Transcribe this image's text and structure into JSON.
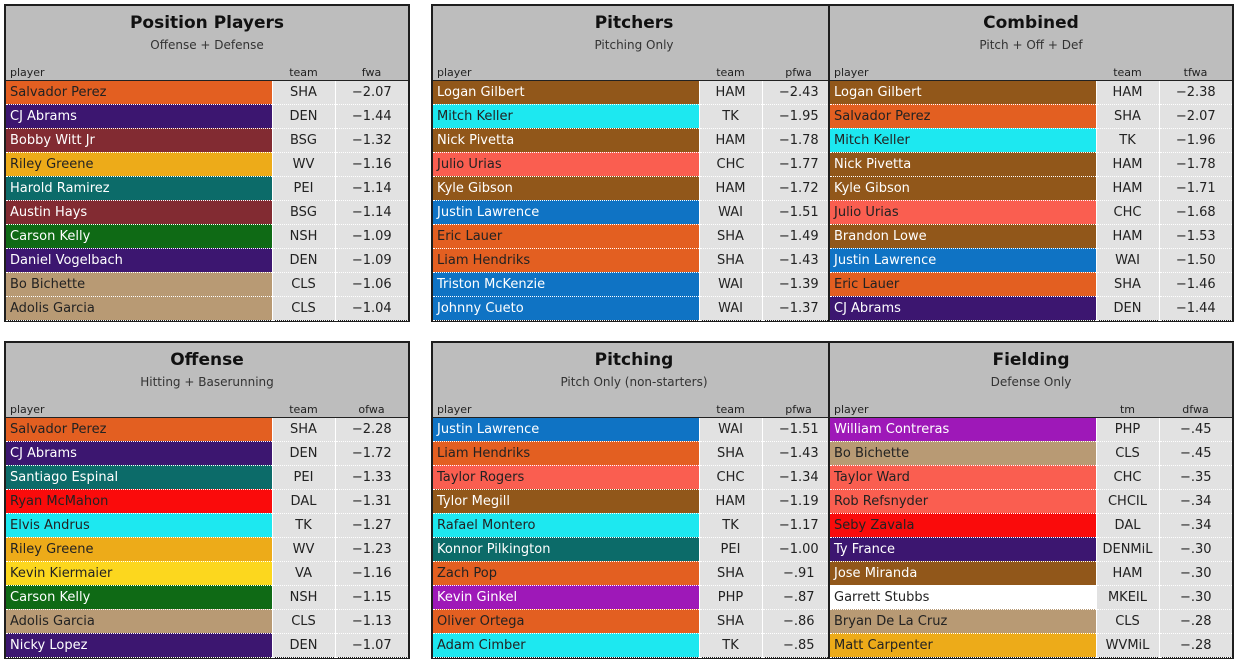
{
  "colors": {
    "SHA": "#e35f21",
    "DEN": "#3c1670",
    "BSG": "#822b32",
    "WV": "#edab19",
    "PEI": "#0c6b69",
    "NSH": "#0f6a15",
    "CLS": "#b89a74",
    "HAM": "#91571a",
    "TK": "#1de8f0",
    "CHC": "#fa5e50",
    "WAI": "#0f73c4",
    "DAL": "#fa0b0b",
    "VA": "#fcd71e",
    "PHP": "#9e18b8",
    "CHCIL": "#fa5e50",
    "DENMiL": "#3c1670",
    "MKEIL": "#ffffff",
    "WVMiL": "#edab19"
  },
  "text_colors": {
    "SHA": "#222222",
    "DEN": "#ffffff",
    "BSG": "#ffffff",
    "WV": "#222222",
    "PEI": "#ffffff",
    "NSH": "#ffffff",
    "CLS": "#222222",
    "HAM": "#ffffff",
    "TK": "#222222",
    "CHC": "#222222",
    "WAI": "#ffffff",
    "DAL": "#222222",
    "VA": "#222222",
    "PHP": "#ffffff",
    "CHCIL": "#222222",
    "DENMiL": "#ffffff",
    "MKEIL": "#222222",
    "WVMiL": "#222222"
  },
  "panels": [
    {
      "title": "Position Players",
      "subtitle": "Offense + Defense",
      "col_player": "player",
      "col_team": "team",
      "col_value": "fwa",
      "rows": [
        {
          "name": "Salvador Perez",
          "team": "SHA",
          "value": "−2.07"
        },
        {
          "name": "CJ Abrams",
          "team": "DEN",
          "value": "−1.44"
        },
        {
          "name": "Bobby Witt Jr",
          "team": "BSG",
          "value": "−1.32"
        },
        {
          "name": "Riley Greene",
          "team": "WV",
          "value": "−1.16"
        },
        {
          "name": "Harold Ramirez",
          "team": "PEI",
          "value": "−1.14"
        },
        {
          "name": "Austin Hays",
          "team": "BSG",
          "value": "−1.14"
        },
        {
          "name": "Carson Kelly",
          "team": "NSH",
          "value": "−1.09"
        },
        {
          "name": "Daniel Vogelbach",
          "team": "DEN",
          "value": "−1.09"
        },
        {
          "name": "Bo Bichette",
          "team": "CLS",
          "value": "−1.06"
        },
        {
          "name": "Adolis Garcia",
          "team": "CLS",
          "value": "−1.04"
        }
      ]
    },
    {
      "title": "Pitchers",
      "subtitle": "Pitching Only",
      "col_player": "player",
      "col_team": "team",
      "col_value": "pfwa",
      "rows": [
        {
          "name": "Logan Gilbert",
          "team": "HAM",
          "value": "−2.43"
        },
        {
          "name": "Mitch Keller",
          "team": "TK",
          "value": "−1.95"
        },
        {
          "name": "Nick Pivetta",
          "team": "HAM",
          "value": "−1.78"
        },
        {
          "name": "Julio Urias",
          "team": "CHC",
          "value": "−1.77"
        },
        {
          "name": "Kyle Gibson",
          "team": "HAM",
          "value": "−1.72"
        },
        {
          "name": "Justin Lawrence",
          "team": "WAI",
          "value": "−1.51"
        },
        {
          "name": "Eric Lauer",
          "team": "SHA",
          "value": "−1.49"
        },
        {
          "name": "Liam Hendriks",
          "team": "SHA",
          "value": "−1.43"
        },
        {
          "name": "Triston McKenzie",
          "team": "WAI",
          "value": "−1.39"
        },
        {
          "name": "Johnny Cueto",
          "team": "WAI",
          "value": "−1.37"
        }
      ]
    },
    {
      "title": "Combined",
      "subtitle": "Pitch + Off + Def",
      "col_player": "player",
      "col_team": "team",
      "col_value": "tfwa",
      "rows": [
        {
          "name": "Logan Gilbert",
          "team": "HAM",
          "value": "−2.38"
        },
        {
          "name": "Salvador Perez",
          "team": "SHA",
          "value": "−2.07"
        },
        {
          "name": "Mitch Keller",
          "team": "TK",
          "value": "−1.96"
        },
        {
          "name": "Nick Pivetta",
          "team": "HAM",
          "value": "−1.78"
        },
        {
          "name": "Kyle Gibson",
          "team": "HAM",
          "value": "−1.71"
        },
        {
          "name": "Julio Urias",
          "team": "CHC",
          "value": "−1.68"
        },
        {
          "name": "Brandon Lowe",
          "team": "HAM",
          "value": "−1.53"
        },
        {
          "name": "Justin Lawrence",
          "team": "WAI",
          "value": "−1.50"
        },
        {
          "name": "Eric Lauer",
          "team": "SHA",
          "value": "−1.46"
        },
        {
          "name": "CJ Abrams",
          "team": "DEN",
          "value": "−1.44"
        }
      ]
    },
    {
      "title": "Offense",
      "subtitle": "Hitting + Baserunning",
      "col_player": "player",
      "col_team": "team",
      "col_value": "ofwa",
      "rows": [
        {
          "name": "Salvador Perez",
          "team": "SHA",
          "value": "−2.28"
        },
        {
          "name": "CJ Abrams",
          "team": "DEN",
          "value": "−1.72"
        },
        {
          "name": "Santiago Espinal",
          "team": "PEI",
          "value": "−1.33"
        },
        {
          "name": "Ryan McMahon",
          "team": "DAL",
          "value": "−1.31"
        },
        {
          "name": "Elvis Andrus",
          "team": "TK",
          "value": "−1.27"
        },
        {
          "name": "Riley Greene",
          "team": "WV",
          "value": "−1.23"
        },
        {
          "name": "Kevin Kiermaier",
          "team": "VA",
          "value": "−1.16"
        },
        {
          "name": "Carson Kelly",
          "team": "NSH",
          "value": "−1.15"
        },
        {
          "name": "Adolis Garcia",
          "team": "CLS",
          "value": "−1.13"
        },
        {
          "name": "Nicky Lopez",
          "team": "DEN",
          "value": "−1.07"
        }
      ]
    },
    {
      "title": "Pitching",
      "subtitle": "Pitch Only (non-starters)",
      "col_player": "player",
      "col_team": "team",
      "col_value": "pfwa",
      "rows": [
        {
          "name": "Justin Lawrence",
          "team": "WAI",
          "value": "−1.51"
        },
        {
          "name": "Liam Hendriks",
          "team": "SHA",
          "value": "−1.43"
        },
        {
          "name": "Taylor Rogers",
          "team": "CHC",
          "value": "−1.34"
        },
        {
          "name": "Tylor Megill",
          "team": "HAM",
          "value": "−1.19"
        },
        {
          "name": "Rafael Montero",
          "team": "TK",
          "value": "−1.17"
        },
        {
          "name": "Konnor Pilkington",
          "team": "PEI",
          "value": "−1.00"
        },
        {
          "name": "Zach Pop",
          "team": "SHA",
          "value": "−.91"
        },
        {
          "name": "Kevin Ginkel",
          "team": "PHP",
          "value": "−.87"
        },
        {
          "name": "Oliver Ortega",
          "team": "SHA",
          "value": "−.86"
        },
        {
          "name": "Adam Cimber",
          "team": "TK",
          "value": "−.85"
        }
      ]
    },
    {
      "title": "Fielding",
      "subtitle": "Defense Only",
      "col_player": "player",
      "col_team": "tm",
      "col_value": "dfwa",
      "rows": [
        {
          "name": "William Contreras",
          "team": "PHP",
          "value": "−.45"
        },
        {
          "name": "Bo Bichette",
          "team": "CLS",
          "value": "−.45"
        },
        {
          "name": "Taylor Ward",
          "team": "CHC",
          "value": "−.35"
        },
        {
          "name": "Rob Refsnyder",
          "team": "CHCIL",
          "value": "−.34"
        },
        {
          "name": "Seby Zavala",
          "team": "DAL",
          "value": "−.34"
        },
        {
          "name": "Ty France",
          "team": "DENMiL",
          "value": "−.30"
        },
        {
          "name": "Jose Miranda",
          "team": "HAM",
          "value": "−.30"
        },
        {
          "name": "Garrett Stubbs",
          "team": "MKEIL",
          "value": "−.30"
        },
        {
          "name": "Bryan De La Cruz",
          "team": "CLS",
          "value": "−.28"
        },
        {
          "name": "Matt Carpenter",
          "team": "WVMiL",
          "value": "−.28"
        }
      ]
    }
  ]
}
